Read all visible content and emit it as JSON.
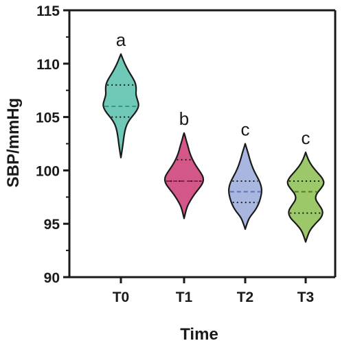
{
  "chart_data": {
    "type": "violin",
    "title": "",
    "xlabel": "Time",
    "ylabel": "SBP/mmHg",
    "ylim": [
      90,
      115
    ],
    "yticks": [
      90,
      95,
      100,
      105,
      110,
      115
    ],
    "grid": false,
    "legend": "none",
    "categories": [
      "T0",
      "T1",
      "T2",
      "T3"
    ],
    "series": [
      {
        "category": "T0",
        "color": "#6fc9b6",
        "median_color": "#2f9a82",
        "significance": "a",
        "min": 101.2,
        "max": 110.9,
        "q1": 105,
        "median": 106,
        "q3": 108,
        "density": [
          [
            101.2,
            0
          ],
          [
            101.8,
            0.05
          ],
          [
            102.5,
            0.1
          ],
          [
            103.3,
            0.15
          ],
          [
            104,
            0.22
          ],
          [
            104.6,
            0.35
          ],
          [
            105.1,
            0.55
          ],
          [
            105.6,
            0.75
          ],
          [
            106.1,
            0.85
          ],
          [
            106.6,
            0.78
          ],
          [
            107.1,
            0.7
          ],
          [
            107.6,
            0.72
          ],
          [
            108.1,
            0.7
          ],
          [
            108.6,
            0.58
          ],
          [
            109.1,
            0.42
          ],
          [
            109.6,
            0.28
          ],
          [
            110.1,
            0.16
          ],
          [
            110.5,
            0.08
          ],
          [
            110.9,
            0
          ]
        ]
      },
      {
        "category": "T1",
        "color": "#d4578a",
        "median_color": "#8a1f4a",
        "significance": "b",
        "min": 95.5,
        "max": 103.5,
        "q1": 99,
        "median": 99,
        "q3": 101,
        "density": [
          [
            95.5,
            0
          ],
          [
            96,
            0.06
          ],
          [
            96.6,
            0.14
          ],
          [
            97.2,
            0.3
          ],
          [
            97.8,
            0.5
          ],
          [
            98.3,
            0.7
          ],
          [
            98.8,
            0.88
          ],
          [
            99.3,
            0.92
          ],
          [
            99.8,
            0.78
          ],
          [
            100.3,
            0.6
          ],
          [
            100.8,
            0.45
          ],
          [
            101.3,
            0.33
          ],
          [
            101.8,
            0.24
          ],
          [
            102.3,
            0.18
          ],
          [
            102.8,
            0.1
          ],
          [
            103.2,
            0.05
          ],
          [
            103.5,
            0
          ]
        ]
      },
      {
        "category": "T2",
        "color": "#a9b6e0",
        "median_color": "#5e73b5",
        "significance": "c",
        "min": 94.5,
        "max": 102.5,
        "q1": 97,
        "median": 98,
        "q3": 99,
        "density": [
          [
            94.5,
            0
          ],
          [
            95,
            0.08
          ],
          [
            95.6,
            0.2
          ],
          [
            96.2,
            0.45
          ],
          [
            96.8,
            0.62
          ],
          [
            97.4,
            0.72
          ],
          [
            98,
            0.78
          ],
          [
            98.6,
            0.75
          ],
          [
            99.2,
            0.62
          ],
          [
            99.8,
            0.45
          ],
          [
            100.4,
            0.32
          ],
          [
            101,
            0.22
          ],
          [
            101.6,
            0.14
          ],
          [
            102.1,
            0.06
          ],
          [
            102.5,
            0
          ]
        ]
      },
      {
        "category": "T3",
        "color": "#9cc86a",
        "median_color": "#4f7d1f",
        "significance": "c",
        "min": 93.3,
        "max": 101.7,
        "q1": 96,
        "median": 98,
        "q3": 99,
        "density": [
          [
            93.3,
            0
          ],
          [
            93.8,
            0.08
          ],
          [
            94.4,
            0.2
          ],
          [
            95,
            0.45
          ],
          [
            95.6,
            0.75
          ],
          [
            96.2,
            0.82
          ],
          [
            96.8,
            0.62
          ],
          [
            97.3,
            0.45
          ],
          [
            97.8,
            0.5
          ],
          [
            98.3,
            0.72
          ],
          [
            98.8,
            0.88
          ],
          [
            99.3,
            0.78
          ],
          [
            99.8,
            0.55
          ],
          [
            100.4,
            0.3
          ],
          [
            101,
            0.12
          ],
          [
            101.7,
            0
          ]
        ]
      }
    ]
  }
}
